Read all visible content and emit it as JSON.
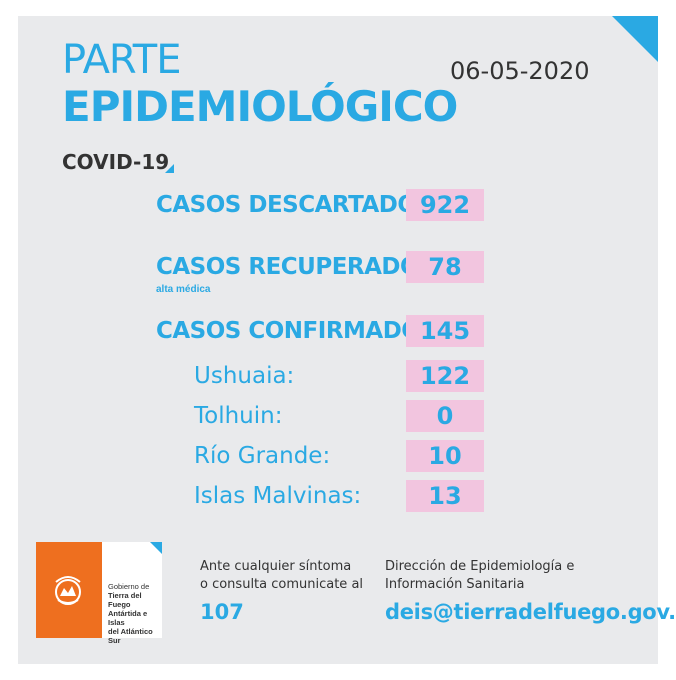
{
  "header": {
    "title_line1": "PARTE",
    "title_line2": "EPIDEMIOLÓGICO",
    "date": "06-05-2020",
    "subtitle": "COVID-19"
  },
  "stats": {
    "descartados": {
      "label": "CASOS DESCARTADOS:",
      "value": "922"
    },
    "recuperados": {
      "label": "CASOS RECUPERADOS:",
      "note": "alta médica",
      "value": "78"
    },
    "confirmados": {
      "label": "CASOS CONFIRMADOS:",
      "value": "145"
    },
    "locations": [
      {
        "label": "Ushuaia:",
        "value": "122"
      },
      {
        "label": "Tolhuin:",
        "value": "0"
      },
      {
        "label": "Río Grande:",
        "value": "10"
      },
      {
        "label": "Islas Malvinas:",
        "value": "13"
      }
    ]
  },
  "footer": {
    "logo_text_line1": "Gobierno de",
    "logo_text_line2": "Tierra del Fuego",
    "logo_text_line3": "Antártida e Islas",
    "logo_text_line4": "del Atlántico Sur",
    "help_line1": "Ante cualquier síntoma",
    "help_line2": "o consulta comunicate al",
    "help_phone": "107",
    "dir_line1": "Dirección de Epidemiología e",
    "dir_line2": "Información Sanitaria",
    "email": "deis@tierradelfuego.gov.ar"
  },
  "colors": {
    "accent": "#2aa9e3",
    "value_bg": "#f2c5df",
    "panel_bg": "#e9eaec",
    "logo_orange": "#ee6f1f",
    "text_dark": "#333333"
  },
  "icons": {
    "logo": "provincial-seal-icon",
    "corner": "folded-corner-icon"
  }
}
